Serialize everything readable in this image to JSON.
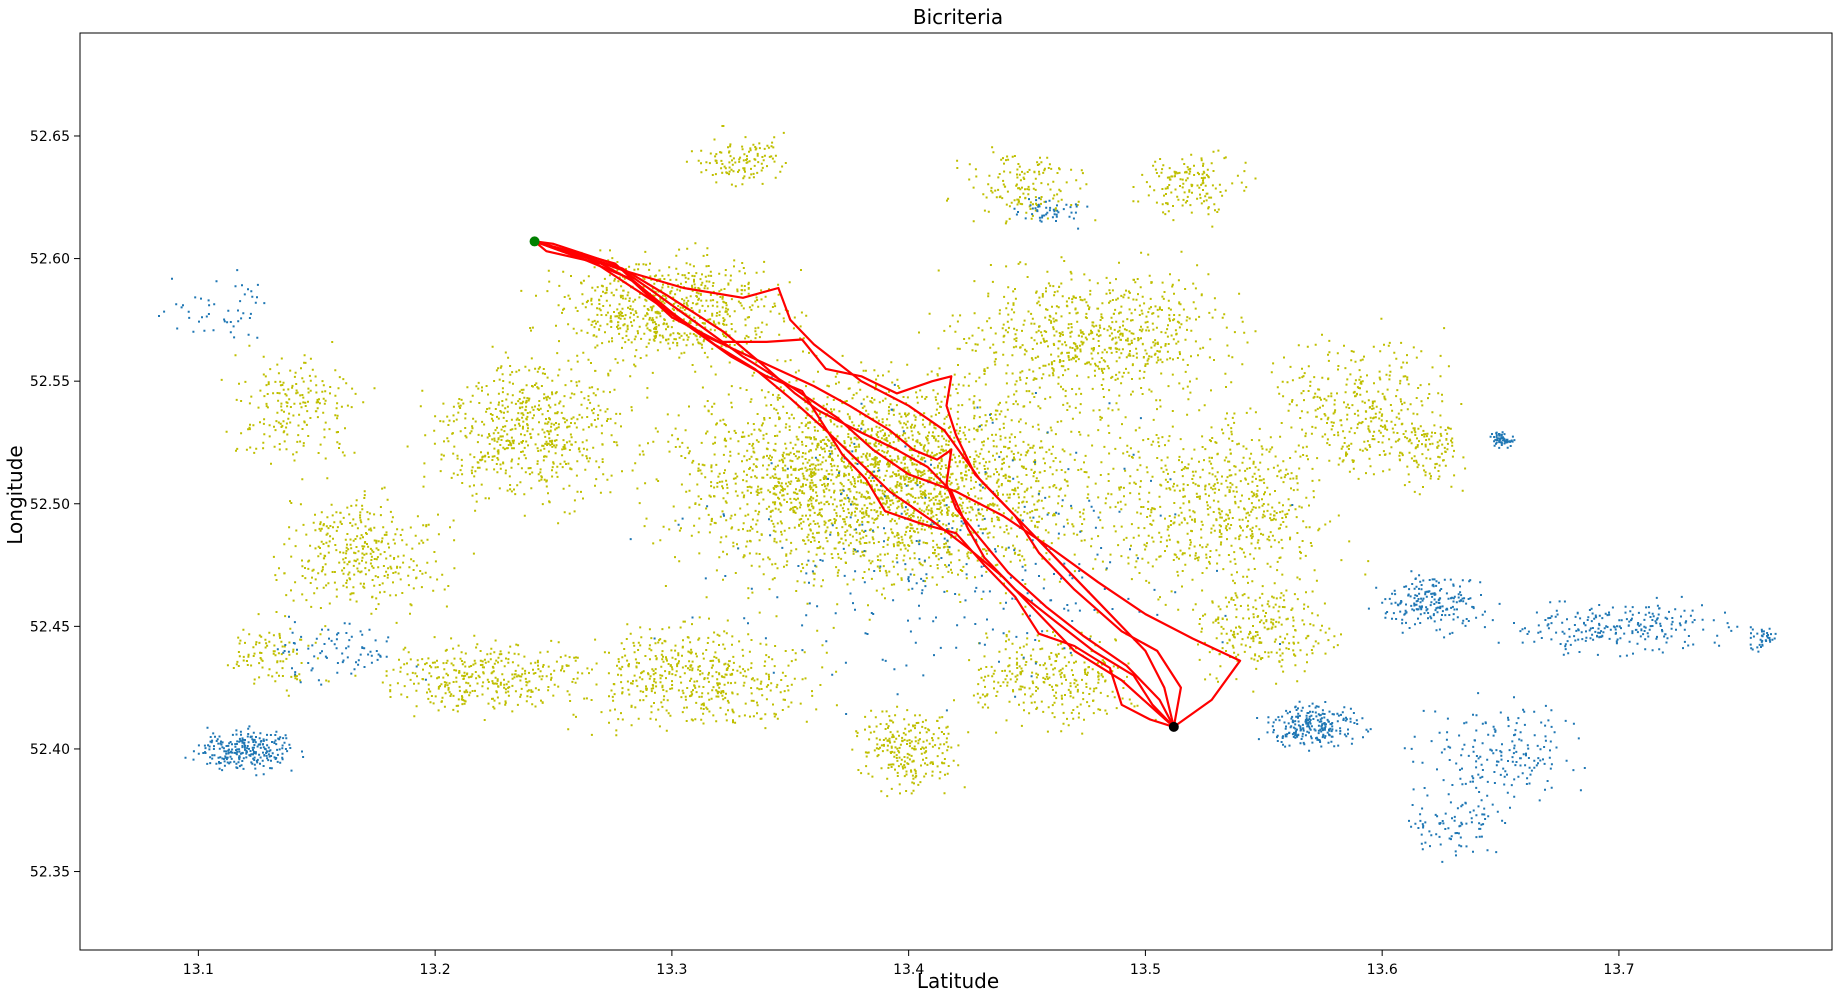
{
  "chart_data": {
    "type": "scatter",
    "title": "Bicriteria",
    "xlabel": "Latitude",
    "ylabel": "Longitude",
    "xlim": [
      13.05,
      13.79
    ],
    "ylim": [
      52.318,
      52.692
    ],
    "xticks": [
      "13.1",
      "13.2",
      "13.3",
      "13.4",
      "13.5",
      "13.6",
      "13.7"
    ],
    "yticks": [
      "52.35",
      "52.40",
      "52.45",
      "52.50",
      "52.55",
      "52.60",
      "52.65"
    ],
    "grid": false,
    "colors": {
      "explored_nodes": "#bfbf00",
      "unexplored_nodes": "#1f77b4",
      "routes": "#ff0000",
      "start": "#008000",
      "target": "#000000"
    },
    "start_point": {
      "x": 13.242,
      "y": 52.607
    },
    "target_point": {
      "x": 13.512,
      "y": 52.409
    },
    "routes": [
      [
        [
          13.242,
          52.607
        ],
        [
          13.25,
          52.606
        ],
        [
          13.275,
          52.598
        ],
        [
          13.29,
          52.588
        ],
        [
          13.31,
          52.574
        ],
        [
          13.33,
          52.56
        ],
        [
          13.35,
          52.548
        ],
        [
          13.37,
          52.535
        ],
        [
          13.385,
          52.522
        ],
        [
          13.4,
          52.512
        ],
        [
          13.42,
          52.505
        ],
        [
          13.44,
          52.495
        ],
        [
          13.46,
          52.482
        ],
        [
          13.48,
          52.468
        ],
        [
          13.5,
          52.455
        ],
        [
          13.52,
          52.445
        ],
        [
          13.54,
          52.436
        ],
        [
          13.528,
          52.42
        ],
        [
          13.512,
          52.409
        ]
      ],
      [
        [
          13.242,
          52.607
        ],
        [
          13.247,
          52.603
        ],
        [
          13.27,
          52.598
        ],
        [
          13.285,
          52.59
        ],
        [
          13.3,
          52.578
        ],
        [
          13.318,
          52.565
        ],
        [
          13.335,
          52.555
        ],
        [
          13.35,
          52.543
        ],
        [
          13.365,
          52.53
        ],
        [
          13.378,
          52.518
        ],
        [
          13.392,
          52.505
        ],
        [
          13.41,
          52.493
        ],
        [
          13.425,
          52.482
        ],
        [
          13.44,
          52.47
        ],
        [
          13.455,
          52.455
        ],
        [
          13.47,
          52.44
        ],
        [
          13.49,
          52.428
        ],
        [
          13.505,
          52.415
        ],
        [
          13.512,
          52.409
        ]
      ],
      [
        [
          13.242,
          52.607
        ],
        [
          13.265,
          52.6
        ],
        [
          13.28,
          52.595
        ],
        [
          13.305,
          52.588
        ],
        [
          13.33,
          52.584
        ],
        [
          13.345,
          52.588
        ],
        [
          13.35,
          52.575
        ],
        [
          13.36,
          52.565
        ],
        [
          13.38,
          52.55
        ],
        [
          13.4,
          52.54
        ],
        [
          13.415,
          52.53
        ],
        [
          13.43,
          52.51
        ],
        [
          13.445,
          52.495
        ],
        [
          13.455,
          52.48
        ],
        [
          13.47,
          52.465
        ],
        [
          13.49,
          52.448
        ],
        [
          13.505,
          52.44
        ],
        [
          13.515,
          52.425
        ],
        [
          13.512,
          52.409
        ]
      ],
      [
        [
          13.242,
          52.607
        ],
        [
          13.262,
          52.6
        ],
        [
          13.282,
          52.592
        ],
        [
          13.3,
          52.576
        ],
        [
          13.32,
          52.566
        ],
        [
          13.34,
          52.566
        ],
        [
          13.355,
          52.567
        ],
        [
          13.365,
          52.555
        ],
        [
          13.38,
          52.552
        ],
        [
          13.395,
          52.545
        ],
        [
          13.41,
          52.55
        ],
        [
          13.418,
          52.552
        ],
        [
          13.416,
          52.54
        ],
        [
          13.42,
          52.528
        ],
        [
          13.428,
          52.512
        ],
        [
          13.44,
          52.5
        ],
        [
          13.46,
          52.48
        ],
        [
          13.48,
          52.46
        ],
        [
          13.5,
          52.44
        ],
        [
          13.508,
          52.425
        ],
        [
          13.512,
          52.409
        ]
      ],
      [
        [
          13.242,
          52.607
        ],
        [
          13.276,
          52.598
        ],
        [
          13.296,
          52.58
        ],
        [
          13.325,
          52.56
        ],
        [
          13.34,
          52.552
        ],
        [
          13.355,
          52.546
        ],
        [
          13.372,
          52.52
        ],
        [
          13.382,
          52.51
        ],
        [
          13.39,
          52.497
        ],
        [
          13.405,
          52.492
        ],
        [
          13.42,
          52.488
        ],
        [
          13.432,
          52.475
        ],
        [
          13.445,
          52.462
        ],
        [
          13.455,
          52.447
        ],
        [
          13.47,
          52.442
        ],
        [
          13.485,
          52.433
        ],
        [
          13.49,
          52.418
        ],
        [
          13.502,
          52.412
        ],
        [
          13.512,
          52.409
        ]
      ],
      [
        [
          13.242,
          52.607
        ],
        [
          13.279,
          52.596
        ],
        [
          13.298,
          52.585
        ],
        [
          13.322,
          52.57
        ],
        [
          13.338,
          52.557
        ],
        [
          13.352,
          52.545
        ],
        [
          13.362,
          52.538
        ],
        [
          13.378,
          52.53
        ],
        [
          13.395,
          52.522
        ],
        [
          13.408,
          52.515
        ],
        [
          13.418,
          52.505
        ],
        [
          13.425,
          52.49
        ],
        [
          13.432,
          52.478
        ],
        [
          13.445,
          52.465
        ],
        [
          13.462,
          52.452
        ],
        [
          13.478,
          52.44
        ],
        [
          13.495,
          52.43
        ],
        [
          13.503,
          52.418
        ],
        [
          13.512,
          52.409
        ]
      ],
      [
        [
          13.242,
          52.607
        ],
        [
          13.268,
          52.598
        ],
        [
          13.29,
          52.584
        ],
        [
          13.315,
          52.568
        ],
        [
          13.342,
          52.556
        ],
        [
          13.36,
          52.548
        ],
        [
          13.375,
          52.54
        ],
        [
          13.392,
          52.53
        ],
        [
          13.402,
          52.522
        ],
        [
          13.412,
          52.518
        ],
        [
          13.418,
          52.522
        ],
        [
          13.416,
          52.508
        ],
        [
          13.42,
          52.498
        ],
        [
          13.43,
          52.486
        ],
        [
          13.442,
          52.472
        ],
        [
          13.458,
          52.458
        ],
        [
          13.474,
          52.446
        ],
        [
          13.492,
          52.434
        ],
        [
          13.506,
          52.42
        ],
        [
          13.512,
          52.409
        ]
      ]
    ]
  }
}
